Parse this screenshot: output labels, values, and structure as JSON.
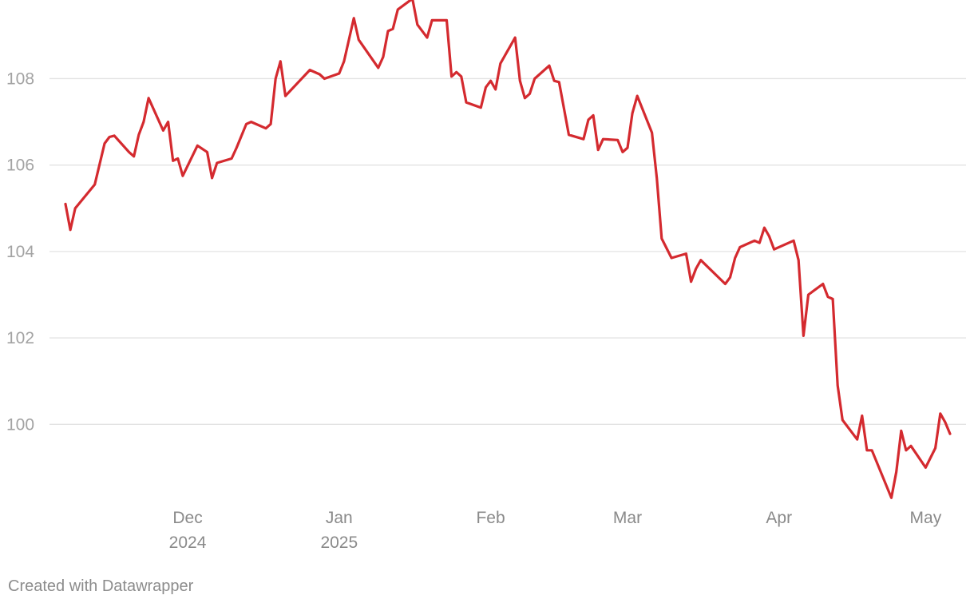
{
  "footer": {
    "credit": "Created with Datawrapper"
  },
  "colors": {
    "line": "#d42a2f",
    "grid": "#e3e3e3",
    "tick_text": "#a3a3a3"
  },
  "chart_data": {
    "type": "line",
    "title": "",
    "xlabel": "",
    "ylabel": "",
    "ylim": [
      98.0,
      109.5
    ],
    "xlim": [
      "2024-11-06",
      "2025-05-06"
    ],
    "grid": true,
    "y_ticks": [
      100,
      102,
      104,
      106,
      108
    ],
    "x_ticks": [
      {
        "date": "2024-12-01",
        "label": "Dec",
        "sublabel": "2024"
      },
      {
        "date": "2025-01-01",
        "label": "Jan",
        "sublabel": "2025"
      },
      {
        "date": "2025-02-01",
        "label": "Feb",
        "sublabel": ""
      },
      {
        "date": "2025-03-01",
        "label": "Mar",
        "sublabel": ""
      },
      {
        "date": "2025-04-01",
        "label": "Apr",
        "sublabel": ""
      },
      {
        "date": "2025-05-01",
        "label": "May",
        "sublabel": ""
      }
    ],
    "series": [
      {
        "points": [
          [
            "2024-11-06",
            105.1
          ],
          [
            "2024-11-07",
            104.5
          ],
          [
            "2024-11-08",
            105.0
          ],
          [
            "2024-11-12",
            105.55
          ],
          [
            "2024-11-14",
            106.5
          ],
          [
            "2024-11-15",
            106.65
          ],
          [
            "2024-11-16",
            106.68
          ],
          [
            "2024-11-19",
            106.3
          ],
          [
            "2024-11-20",
            106.2
          ],
          [
            "2024-11-21",
            106.7
          ],
          [
            "2024-11-22",
            107.0
          ],
          [
            "2024-11-23",
            107.55
          ],
          [
            "2024-11-26",
            106.8
          ],
          [
            "2024-11-27",
            107.0
          ],
          [
            "2024-11-28",
            106.1
          ],
          [
            "2024-11-29",
            106.15
          ],
          [
            "2024-11-30",
            105.75
          ],
          [
            "2024-12-03",
            106.45
          ],
          [
            "2024-12-05",
            106.3
          ],
          [
            "2024-12-06",
            105.7
          ],
          [
            "2024-12-07",
            106.05
          ],
          [
            "2024-12-10",
            106.15
          ],
          [
            "2024-12-11",
            106.4
          ],
          [
            "2024-12-13",
            106.95
          ],
          [
            "2024-12-14",
            107.0
          ],
          [
            "2024-12-17",
            106.85
          ],
          [
            "2024-12-18",
            106.95
          ],
          [
            "2024-12-19",
            108.0
          ],
          [
            "2024-12-20",
            108.4
          ],
          [
            "2024-12-21",
            107.6
          ],
          [
            "2024-12-26",
            108.2
          ],
          [
            "2024-12-28",
            108.1
          ],
          [
            "2024-12-29",
            108.0
          ],
          [
            "2025-01-01",
            108.12
          ],
          [
            "2025-01-02",
            108.4
          ],
          [
            "2025-01-04",
            109.4
          ],
          [
            "2025-01-05",
            108.9
          ],
          [
            "2025-01-09",
            108.25
          ],
          [
            "2025-01-10",
            108.5
          ],
          [
            "2025-01-11",
            109.1
          ],
          [
            "2025-01-12",
            109.15
          ],
          [
            "2025-01-13",
            109.6
          ],
          [
            "2025-01-16",
            109.85
          ],
          [
            "2025-01-17",
            109.25
          ],
          [
            "2025-01-19",
            108.95
          ],
          [
            "2025-01-20",
            109.35
          ],
          [
            "2025-01-23",
            109.35
          ],
          [
            "2025-01-24",
            108.05
          ],
          [
            "2025-01-25",
            108.15
          ],
          [
            "2025-01-26",
            108.05
          ],
          [
            "2025-01-27",
            107.45
          ],
          [
            "2025-01-30",
            107.33
          ],
          [
            "2025-01-31",
            107.8
          ],
          [
            "2025-02-01",
            107.95
          ],
          [
            "2025-02-02",
            107.75
          ],
          [
            "2025-02-03",
            108.35
          ],
          [
            "2025-02-06",
            108.95
          ],
          [
            "2025-02-07",
            107.95
          ],
          [
            "2025-02-08",
            107.55
          ],
          [
            "2025-02-09",
            107.65
          ],
          [
            "2025-02-10",
            108.0
          ],
          [
            "2025-02-13",
            108.3
          ],
          [
            "2025-02-14",
            107.95
          ],
          [
            "2025-02-15",
            107.92
          ],
          [
            "2025-02-17",
            106.7
          ],
          [
            "2025-02-20",
            106.6
          ],
          [
            "2025-02-21",
            107.05
          ],
          [
            "2025-02-22",
            107.15
          ],
          [
            "2025-02-23",
            106.35
          ],
          [
            "2025-02-24",
            106.6
          ],
          [
            "2025-02-27",
            106.58
          ],
          [
            "2025-02-28",
            106.3
          ],
          [
            "2025-03-01",
            106.4
          ],
          [
            "2025-03-02",
            107.2
          ],
          [
            "2025-03-03",
            107.6
          ],
          [
            "2025-03-06",
            106.75
          ],
          [
            "2025-03-07",
            105.7
          ],
          [
            "2025-03-08",
            104.3
          ],
          [
            "2025-03-10",
            103.85
          ],
          [
            "2025-03-13",
            103.95
          ],
          [
            "2025-03-14",
            103.3
          ],
          [
            "2025-03-15",
            103.6
          ],
          [
            "2025-03-16",
            103.8
          ],
          [
            "2025-03-21",
            103.25
          ],
          [
            "2025-03-22",
            103.4
          ],
          [
            "2025-03-23",
            103.85
          ],
          [
            "2025-03-24",
            104.1
          ],
          [
            "2025-03-27",
            104.25
          ],
          [
            "2025-03-28",
            104.2
          ],
          [
            "2025-03-29",
            104.55
          ],
          [
            "2025-03-30",
            104.35
          ],
          [
            "2025-03-31",
            104.05
          ],
          [
            "2025-04-04",
            104.25
          ],
          [
            "2025-04-05",
            103.8
          ],
          [
            "2025-04-06",
            102.05
          ],
          [
            "2025-04-07",
            103.0
          ],
          [
            "2025-04-10",
            103.25
          ],
          [
            "2025-04-11",
            102.95
          ],
          [
            "2025-04-12",
            102.9
          ],
          [
            "2025-04-13",
            100.9
          ],
          [
            "2025-04-14",
            100.1
          ],
          [
            "2025-04-17",
            99.65
          ],
          [
            "2025-04-18",
            100.2
          ],
          [
            "2025-04-19",
            99.4
          ],
          [
            "2025-04-20",
            99.4
          ],
          [
            "2025-04-24",
            98.3
          ],
          [
            "2025-04-25",
            98.9
          ],
          [
            "2025-04-26",
            99.85
          ],
          [
            "2025-04-27",
            99.4
          ],
          [
            "2025-04-28",
            99.5
          ],
          [
            "2025-05-01",
            99.0
          ],
          [
            "2025-05-03",
            99.45
          ],
          [
            "2025-05-04",
            100.25
          ],
          [
            "2025-05-05",
            100.05
          ],
          [
            "2025-05-06",
            99.78
          ]
        ]
      }
    ]
  }
}
